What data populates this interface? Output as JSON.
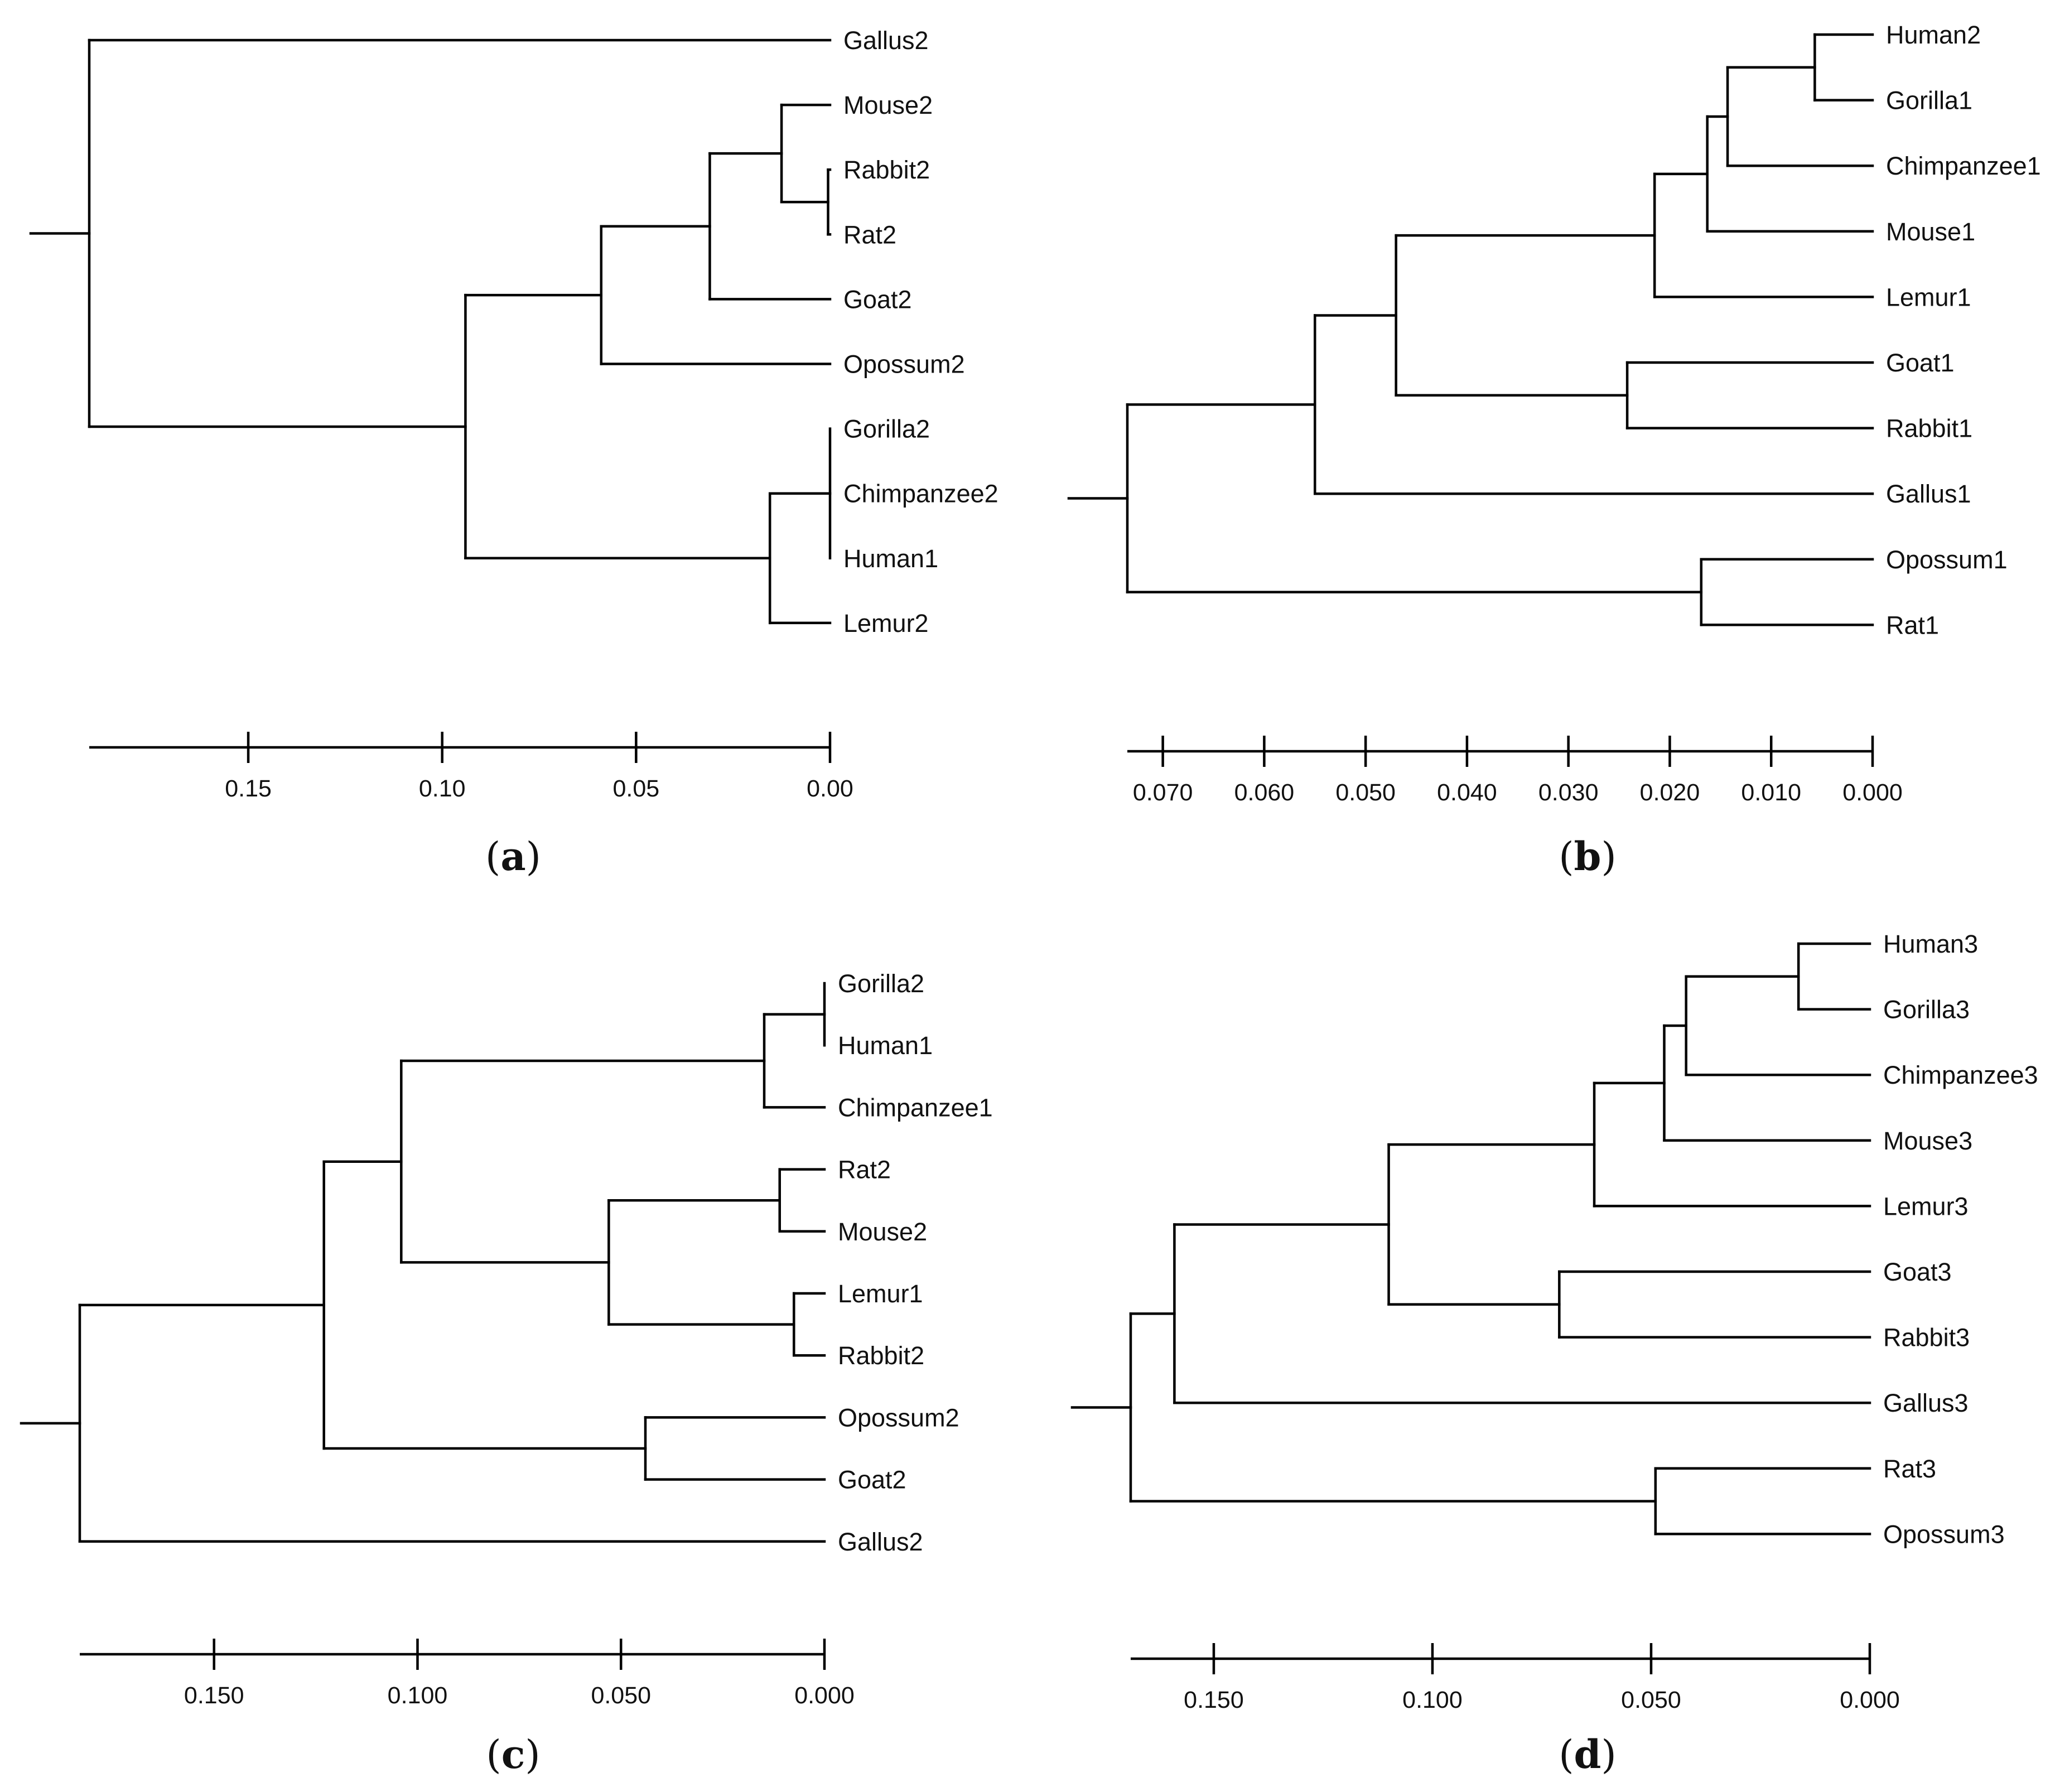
{
  "panels": [
    {
      "id": "a",
      "caption": "a",
      "leaves": [
        "Gallus2",
        "Mouse2",
        "Rabbit2",
        "Rat2",
        "Goat2",
        "Opossum2",
        "Gorilla2",
        "Chimpanzee2",
        "Human1",
        "Lemur2"
      ],
      "tree": [
        0.191,
        [
          0.0,
          0
        ],
        [
          0.094,
          [
            0.059,
            [
              0.031,
              [
                0.0125,
                [
                  0.0,
                  1
                ],
                [
                  0.0005,
                  [
                    0.0,
                    2
                  ],
                  [
                    0.0,
                    3
                  ]
                ]
              ],
              [
                0.0,
                4
              ]
            ],
            [
              0.0,
              5
            ]
          ],
          [
            0.0155,
            [
              0.0,
              [
                0.0,
                6
              ],
              [
                0.0,
                7
              ],
              [
                0.0,
                8
              ]
            ],
            [
              0.0,
              9
            ]
          ]
        ]
      ],
      "axis": {
        "max": 0.191,
        "ticks": [
          0.15,
          0.1,
          0.05,
          0.0
        ],
        "tick_labels": [
          "0.15",
          "0.10",
          "0.05",
          "0.00"
        ]
      }
    },
    {
      "id": "b",
      "caption": "b",
      "leaves": [
        "Human2",
        "Gorilla1",
        "Chimpanzee1",
        "Mouse1",
        "Lemur1",
        "Goat1",
        "Rabbit1",
        "Gallus1",
        "Opossum1",
        "Rat1"
      ],
      "tree": [
        0.0735,
        [
          0.055,
          [
            0.047,
            [
              0.0215,
              [
                0.0163,
                [
                  0.0143,
                  [
                    0.0057,
                    [
                      0.0,
                      0
                    ],
                    [
                      0.0,
                      1
                    ]
                  ],
                  [
                    0.0,
                    2
                  ]
                ],
                [
                  0.0,
                  3
                ]
              ],
              [
                0.0,
                4
              ]
            ],
            [
              0.0242,
              [
                0.0,
                5
              ],
              [
                0.0,
                6
              ]
            ]
          ],
          [
            0.0,
            7
          ]
        ],
        [
          0.0169,
          [
            0.0,
            8
          ],
          [
            0.0,
            9
          ]
        ]
      ],
      "axis": {
        "max": 0.0735,
        "ticks": [
          0.07,
          0.06,
          0.05,
          0.04,
          0.03,
          0.02,
          0.01,
          0.0
        ],
        "tick_labels": [
          "0.070",
          "0.060",
          "0.050",
          "0.040",
          "0.030",
          "0.020",
          "0.010",
          "0.000"
        ]
      }
    },
    {
      "id": "c",
      "caption": "c",
      "leaves": [
        "Gorilla2",
        "Human1",
        "Chimpanzee1",
        "Rat2",
        "Mouse2",
        "Lemur1",
        "Rabbit2",
        "Opossum2",
        "Goat2",
        "Gallus2"
      ],
      "tree": [
        0.183,
        [
          0.123,
          [
            0.104,
            [
              0.0148,
              [
                0.0,
                [
                  0.0,
                  0
                ],
                [
                  0.0,
                  1
                ]
              ],
              [
                0.0,
                2
              ]
            ],
            [
              0.053,
              [
                0.011,
                [
                  0.0,
                  3
                ],
                [
                  0.0,
                  4
                ]
              ],
              [
                0.0075,
                [
                  0.0,
                  5
                ],
                [
                  0.0,
                  6
                ]
              ]
            ]
          ],
          [
            0.044,
            [
              0.0,
              7
            ],
            [
              0.0,
              8
            ]
          ]
        ],
        [
          0.0,
          9
        ]
      ],
      "axis": {
        "max": 0.183,
        "ticks": [
          0.15,
          0.1,
          0.05,
          0.0
        ],
        "tick_labels": [
          "0.150",
          "0.100",
          "0.050",
          "0.000"
        ]
      }
    },
    {
      "id": "d",
      "caption": "d",
      "leaves": [
        "Human3",
        "Gorilla3",
        "Chimpanzee3",
        "Mouse3",
        "Lemur3",
        "Goat3",
        "Rabbit3",
        "Gallus3",
        "Rat3",
        "Opossum3"
      ],
      "tree": [
        0.169,
        [
          0.159,
          [
            0.11,
            [
              0.063,
              [
                0.047,
                [
                  0.042,
                  [
                    0.0163,
                    [
                      0.0,
                      0
                    ],
                    [
                      0.0,
                      1
                    ]
                  ],
                  [
                    0.0,
                    2
                  ]
                ],
                [
                  0.0,
                  3
                ]
              ],
              [
                0.0,
                4
              ]
            ],
            [
              0.071,
              [
                0.0,
                5
              ],
              [
                0.0,
                6
              ]
            ]
          ],
          [
            0.0,
            7
          ]
        ],
        [
          0.049,
          [
            0.0,
            8
          ],
          [
            0.0,
            9
          ]
        ]
      ],
      "axis": {
        "max": 0.169,
        "ticks": [
          0.15,
          0.1,
          0.05,
          0.0
        ],
        "tick_labels": [
          "0.150",
          "0.100",
          "0.050",
          "0.000"
        ]
      }
    }
  ]
}
